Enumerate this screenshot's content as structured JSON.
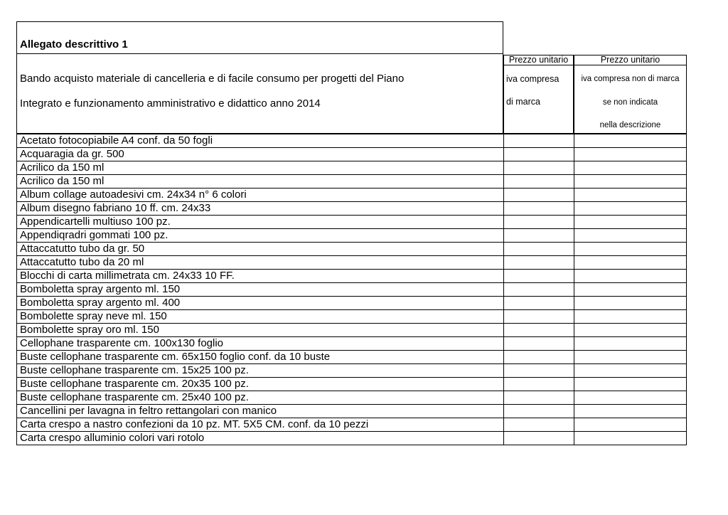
{
  "colors": {
    "background": "#ffffff",
    "border": "#000000",
    "text": "#000000"
  },
  "header": {
    "title": "Allegato descrittivo 1",
    "description_line1": "Bando acquisto materiale di cancelleria e di facile consumo per progetti del Piano",
    "description_line2": "Integrato e funzionamento amministrativo e didattico anno 2014"
  },
  "price_columns": [
    {
      "header": "Prezzo unitario",
      "sub_lines": [
        "iva compresa",
        "di marca"
      ]
    },
    {
      "header": "Prezzo unitario",
      "sub_lines": [
        "iva compresa non di marca",
        "se non indicata",
        "nella descrizione"
      ]
    }
  ],
  "items": [
    "Acetato fotocopiabile A4 conf. da 50 fogli",
    "Acquaragia da gr. 500",
    "Acrilico da 150 ml",
    "Acrilico da 150 ml",
    "Album collage autoadesivi cm. 24x34 n° 6 colori",
    "Album disegno fabriano 10 ff. cm. 24x33",
    "Appendicartelli multiuso 100 pz.",
    "Appendiqradri gommati 100 pz.",
    "Attaccatutto tubo da gr. 50",
    "Attaccatutto tubo da 20 ml",
    "Blocchi di carta millimetrata cm. 24x33 10 FF.",
    "Bomboletta spray argento ml. 150",
    "Bomboletta spray argento ml. 400",
    "Bombolette spray neve ml. 150",
    "Bombolette spray oro ml. 150",
    "Cellophane trasparente cm. 100x130 foglio",
    "Buste cellophane trasparente cm. 65x150 foglio conf. da 10 buste",
    "Buste cellophane trasparente cm. 15x25 100 pz.",
    "Buste cellophane trasparente cm. 20x35 100 pz.",
    "Buste cellophane trasparente cm. 25x40 100 pz.",
    "Cancellini per lavagna in feltro rettangolari con manico",
    "Carta crespo a nastro confezioni da 10 pz. MT. 5X5 CM. conf. da 10 pezzi",
    "Carta crespo alluminio colori vari rotolo"
  ]
}
